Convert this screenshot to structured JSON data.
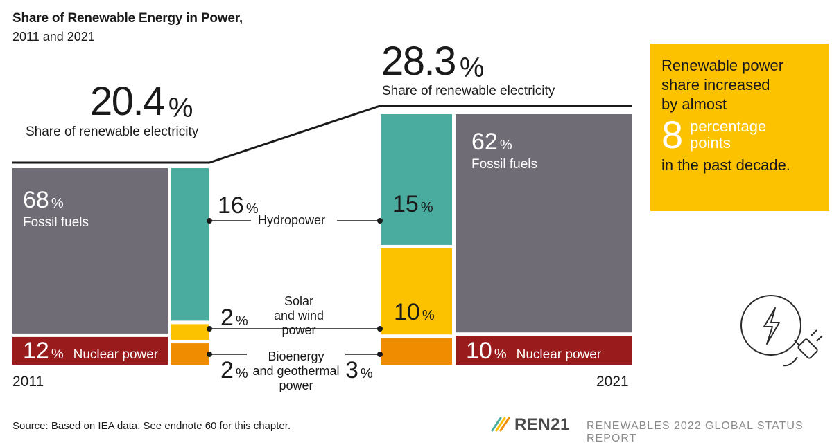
{
  "title": "Share of Renewable Energy in Power,",
  "subtitle": "2011 and 2021",
  "colors": {
    "fossil": "#6f6c76",
    "nuclear": "#9a1b1b",
    "hydro": "#4aab9f",
    "solar_wind": "#fcc200",
    "bio_geo": "#ef8c00",
    "callout": "#fcc200"
  },
  "chart_data": {
    "type": "bar",
    "title": "Share of Renewable Energy in Power,",
    "subtitle": "2011 and 2021",
    "unit": "%",
    "years": [
      "2011",
      "2021"
    ],
    "renewable_total": {
      "2011": 20.4,
      "2021": 28.3,
      "label": "Share of renewable electricity"
    },
    "series": [
      {
        "name": "Fossil fuels",
        "values": [
          68,
          62
        ]
      },
      {
        "name": "Nuclear power",
        "values": [
          12,
          10
        ]
      },
      {
        "name": "Hydropower",
        "values": [
          16,
          15
        ]
      },
      {
        "name": "Solar and wind power",
        "values": [
          2,
          10
        ]
      },
      {
        "name": "Bioenergy and geothermal power",
        "values": [
          2,
          3
        ]
      }
    ]
  },
  "labels": {
    "total_2011": "20.4",
    "total_2021": "28.3",
    "pct": "%",
    "renewable_label": "Share of renewable electricity",
    "fossil_2011": "68",
    "fossil_2021": "62",
    "fossil_name": "Fossil fuels",
    "nuclear_2011": "12",
    "nuclear_2021": "10",
    "nuclear_name": "Nuclear power",
    "hydro_2011": "16",
    "hydro_2021": "15",
    "hydro_name": "Hydropower",
    "solar_2011": "2",
    "solar_2021": "10",
    "solar_name_1": "Solar",
    "solar_name_2": "and wind",
    "solar_name_3": "power",
    "bio_2011": "2",
    "bio_2021": "3",
    "bio_name_1": "Bioenergy",
    "bio_name_2": "and geothermal",
    "bio_name_3": "power",
    "year_2011": "2011",
    "year_2021": "2021"
  },
  "callout": {
    "line1": "Renewable power",
    "line2": "share increased",
    "line3": "by almost",
    "number": "8",
    "pp1": "percentage",
    "pp2": "points",
    "line4": "in the past decade."
  },
  "icons": [
    "lightning-plug-icon",
    "ren21-logo-icon"
  ],
  "footer": {
    "source": "Source: Based on IEA data. See endnote 60 for this chapter.",
    "brand": "REN21",
    "report": "RENEWABLES 2022 GLOBAL STATUS REPORT"
  }
}
